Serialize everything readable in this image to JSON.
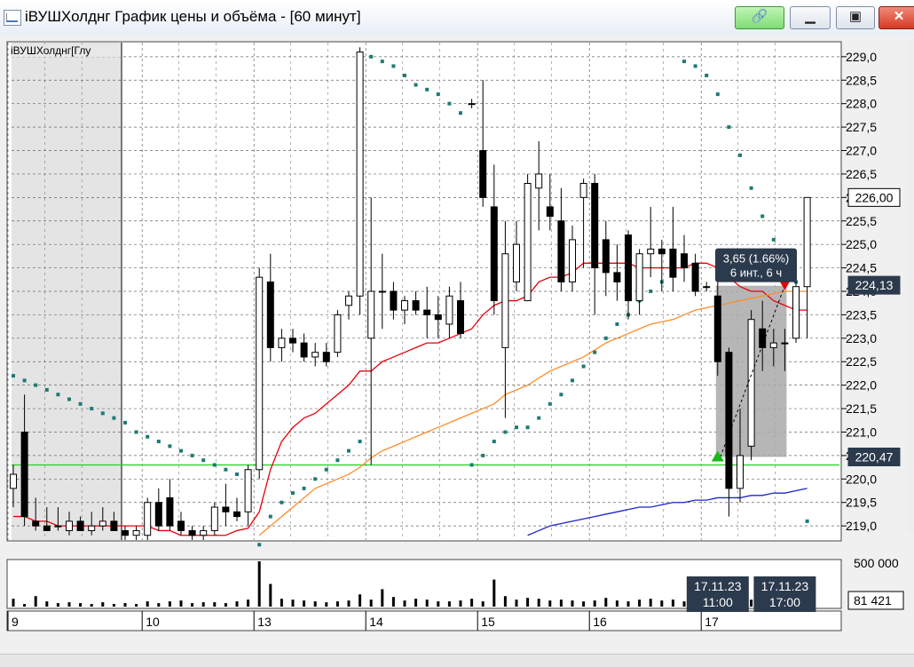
{
  "window": {
    "title": "iВУШХолднг График цены и объёма - [60 минут]",
    "ticker_label": "iВУШХолднг[Глу"
  },
  "colors": {
    "grid": "#666666",
    "candle": "#000000",
    "ma_fast": "#e8000b",
    "ma_mid": "#ff8c2a",
    "ma_slow": "#1e24c8",
    "sar": "#1f7a73",
    "level": "#20d020",
    "highlight": "#a9a9a9",
    "badge": "#2b3a4c",
    "signal_up": "#18b818",
    "signal_down": "#e30000"
  },
  "icons": [
    "chart-app-icon",
    "link-icon",
    "minimize-icon",
    "maximize-icon",
    "close-icon"
  ],
  "chart_data": {
    "type": "candlestick",
    "timeframe": "60 минут",
    "ylim": [
      218.7,
      229.3
    ],
    "y_ticks": [
      "229,0",
      "228,5",
      "228,0",
      "227,5",
      "227,0",
      "226,5",
      "226,0",
      "225,5",
      "225,0",
      "224,5",
      "224,0",
      "223,5",
      "223,0",
      "222,5",
      "222,0",
      "221,5",
      "221,0",
      "220,5",
      "220,0",
      "219,5",
      "219,0"
    ],
    "y_tick_values": [
      229.0,
      228.5,
      228.0,
      227.5,
      227.0,
      226.5,
      226.0,
      225.5,
      225.0,
      224.5,
      224.0,
      223.5,
      223.0,
      222.5,
      222.0,
      221.5,
      221.0,
      220.5,
      220.0,
      219.5,
      219.0
    ],
    "day_labels": [
      {
        "label": "9",
        "index": 0
      },
      {
        "label": "10",
        "index": 12
      },
      {
        "label": "13",
        "index": 22
      },
      {
        "label": "14",
        "index": 32
      },
      {
        "label": "15",
        "index": 42
      },
      {
        "label": "16",
        "index": 52
      },
      {
        "label": "17",
        "index": 62
      }
    ],
    "price_badges": [
      {
        "label": "226,00",
        "value": 226.0
      },
      {
        "label": "224,13",
        "value": 224.13
      },
      {
        "label": "220,47",
        "value": 220.47
      }
    ],
    "measurement": {
      "line1": "3,65 (1.66%)",
      "line2": "6 инт., 6 ч",
      "from_index": 63,
      "to_index": 69,
      "low": 220.47,
      "high": 224.12
    },
    "green_level": 220.3,
    "time_badges": [
      {
        "date": "17.11.23",
        "time": "11:00",
        "index": 63
      },
      {
        "date": "17.11.23",
        "time": "17:00",
        "index": 69
      }
    ],
    "volume_labels": [
      "500 000",
      "81 421"
    ],
    "volume_max": 520000,
    "candles": [
      {
        "o": 219.8,
        "h": 220.3,
        "l": 219.4,
        "c": 220.1
      },
      {
        "o": 221.0,
        "h": 221.8,
        "l": 219.0,
        "c": 219.2
      },
      {
        "o": 219.1,
        "h": 219.6,
        "l": 218.9,
        "c": 219.0
      },
      {
        "o": 219.0,
        "h": 219.4,
        "l": 218.9,
        "c": 218.9
      },
      {
        "o": 219.0,
        "h": 219.4,
        "l": 218.9,
        "c": 219.0
      },
      {
        "o": 218.9,
        "h": 219.3,
        "l": 218.8,
        "c": 219.1
      },
      {
        "o": 219.1,
        "h": 219.2,
        "l": 218.9,
        "c": 218.9
      },
      {
        "o": 218.9,
        "h": 219.3,
        "l": 218.8,
        "c": 219.0
      },
      {
        "o": 219.0,
        "h": 219.4,
        "l": 218.9,
        "c": 219.1
      },
      {
        "o": 219.1,
        "h": 219.3,
        "l": 218.9,
        "c": 218.9
      },
      {
        "o": 218.9,
        "h": 219.0,
        "l": 218.7,
        "c": 218.8
      },
      {
        "o": 218.8,
        "h": 219.0,
        "l": 218.7,
        "c": 218.9
      },
      {
        "o": 218.8,
        "h": 219.6,
        "l": 218.7,
        "c": 219.5
      },
      {
        "o": 219.5,
        "h": 219.8,
        "l": 218.9,
        "c": 219.0
      },
      {
        "o": 219.6,
        "h": 220.0,
        "l": 218.9,
        "c": 219.0
      },
      {
        "o": 219.1,
        "h": 219.3,
        "l": 218.8,
        "c": 218.9
      },
      {
        "o": 218.9,
        "h": 219.0,
        "l": 218.7,
        "c": 218.8
      },
      {
        "o": 218.8,
        "h": 219.0,
        "l": 218.7,
        "c": 218.9
      },
      {
        "o": 218.9,
        "h": 219.5,
        "l": 218.8,
        "c": 219.4
      },
      {
        "o": 219.4,
        "h": 219.9,
        "l": 219.0,
        "c": 219.3
      },
      {
        "o": 219.3,
        "h": 219.6,
        "l": 219.1,
        "c": 219.2
      },
      {
        "o": 219.3,
        "h": 220.3,
        "l": 219.0,
        "c": 220.2
      },
      {
        "o": 220.2,
        "h": 224.5,
        "l": 220.0,
        "c": 224.3
      },
      {
        "o": 224.2,
        "h": 224.8,
        "l": 222.5,
        "c": 222.8
      },
      {
        "o": 222.8,
        "h": 223.2,
        "l": 222.5,
        "c": 223.0
      },
      {
        "o": 223.0,
        "h": 223.2,
        "l": 222.7,
        "c": 222.9
      },
      {
        "o": 222.9,
        "h": 223.1,
        "l": 222.5,
        "c": 222.6
      },
      {
        "o": 222.6,
        "h": 222.9,
        "l": 222.4,
        "c": 222.7
      },
      {
        "o": 222.7,
        "h": 222.9,
        "l": 222.4,
        "c": 222.5
      },
      {
        "o": 222.7,
        "h": 223.6,
        "l": 222.6,
        "c": 223.5
      },
      {
        "o": 223.7,
        "h": 224.0,
        "l": 223.4,
        "c": 223.9
      },
      {
        "o": 223.9,
        "h": 229.2,
        "l": 223.5,
        "c": 229.1
      },
      {
        "o": 223.0,
        "h": 226.0,
        "l": 220.3,
        "c": 224.0
      },
      {
        "o": 224.0,
        "h": 224.8,
        "l": 223.2,
        "c": 224.0
      },
      {
        "o": 224.0,
        "h": 224.2,
        "l": 223.4,
        "c": 223.6
      },
      {
        "o": 223.6,
        "h": 223.9,
        "l": 223.3,
        "c": 223.8
      },
      {
        "o": 223.8,
        "h": 224.0,
        "l": 223.5,
        "c": 223.6
      },
      {
        "o": 223.6,
        "h": 224.1,
        "l": 223.0,
        "c": 223.5
      },
      {
        "o": 223.5,
        "h": 223.9,
        "l": 223.0,
        "c": 223.4
      },
      {
        "o": 223.3,
        "h": 224.1,
        "l": 223.0,
        "c": 223.9
      },
      {
        "o": 223.8,
        "h": 224.2,
        "l": 223.0,
        "c": 223.1
      },
      {
        "o": 228.0,
        "h": 228.1,
        "l": 227.9,
        "c": 228.0
      },
      {
        "o": 227.0,
        "h": 228.5,
        "l": 225.8,
        "c": 226.0
      },
      {
        "o": 225.8,
        "h": 226.7,
        "l": 223.5,
        "c": 223.8
      },
      {
        "o": 222.8,
        "h": 225.5,
        "l": 221.3,
        "c": 224.8
      },
      {
        "o": 224.2,
        "h": 225.5,
        "l": 224.0,
        "c": 225.0
      },
      {
        "o": 223.8,
        "h": 226.5,
        "l": 223.8,
        "c": 226.3
      },
      {
        "o": 226.2,
        "h": 227.2,
        "l": 225.3,
        "c": 226.5
      },
      {
        "o": 225.8,
        "h": 226.5,
        "l": 225.3,
        "c": 225.6
      },
      {
        "o": 225.5,
        "h": 226.2,
        "l": 224.0,
        "c": 224.2
      },
      {
        "o": 224.2,
        "h": 225.4,
        "l": 224.0,
        "c": 225.1
      },
      {
        "o": 226.0,
        "h": 226.4,
        "l": 224.5,
        "c": 226.3
      },
      {
        "o": 226.3,
        "h": 226.5,
        "l": 223.5,
        "c": 224.5
      },
      {
        "o": 225.1,
        "h": 225.5,
        "l": 223.9,
        "c": 224.4
      },
      {
        "o": 224.4,
        "h": 225.0,
        "l": 223.8,
        "c": 224.2
      },
      {
        "o": 225.2,
        "h": 225.3,
        "l": 223.4,
        "c": 223.8
      },
      {
        "o": 223.8,
        "h": 224.9,
        "l": 223.5,
        "c": 224.8
      },
      {
        "o": 224.8,
        "h": 225.8,
        "l": 224.3,
        "c": 224.9
      },
      {
        "o": 224.9,
        "h": 225.1,
        "l": 224.0,
        "c": 224.8
      },
      {
        "o": 224.9,
        "h": 225.8,
        "l": 224.0,
        "c": 224.3
      },
      {
        "o": 224.8,
        "h": 225.2,
        "l": 224.2,
        "c": 224.5
      },
      {
        "o": 224.6,
        "h": 224.8,
        "l": 223.9,
        "c": 224.0
      },
      {
        "o": 224.1,
        "h": 224.2,
        "l": 224.0,
        "c": 224.1
      },
      {
        "o": 223.9,
        "h": 224.2,
        "l": 222.2,
        "c": 222.5
      },
      {
        "o": 222.7,
        "h": 222.8,
        "l": 219.2,
        "c": 219.8
      },
      {
        "o": 219.8,
        "h": 221.5,
        "l": 219.5,
        "c": 220.5
      },
      {
        "o": 220.7,
        "h": 223.6,
        "l": 220.4,
        "c": 223.4
      },
      {
        "o": 223.2,
        "h": 223.8,
        "l": 222.3,
        "c": 222.8
      },
      {
        "o": 222.8,
        "h": 223.2,
        "l": 222.4,
        "c": 222.9
      },
      {
        "o": 222.9,
        "h": 223.2,
        "l": 222.3,
        "c": 222.9
      },
      {
        "o": 223.0,
        "h": 224.3,
        "l": 222.9,
        "c": 224.1
      },
      {
        "o": 224.1,
        "h": 226.0,
        "l": 223.0,
        "c": 226.0
      }
    ],
    "volumes": [
      90000,
      30000,
      120000,
      60000,
      40000,
      50000,
      40000,
      30000,
      50000,
      30000,
      40000,
      30000,
      60000,
      40000,
      60000,
      70000,
      40000,
      50000,
      50000,
      40000,
      60000,
      80000,
      520000,
      260000,
      90000,
      80000,
      70000,
      60000,
      50000,
      60000,
      70000,
      140000,
      80000,
      200000,
      110000,
      70000,
      90000,
      80000,
      60000,
      60000,
      70000,
      90000,
      60000,
      310000,
      120000,
      80000,
      100000,
      90000,
      70000,
      80000,
      70000,
      60000,
      70000,
      100000,
      70000,
      60000,
      80000,
      90000,
      70000,
      80000,
      60000,
      60000,
      40000,
      60000,
      170000,
      90000,
      80000,
      120000,
      70000,
      60000,
      90000,
      81421
    ],
    "ma_fast": [
      219.2,
      219.2,
      219.1,
      219.1,
      219.0,
      219.0,
      219.0,
      219.0,
      219.0,
      219.0,
      219.0,
      219.0,
      219.0,
      218.9,
      218.9,
      218.8,
      218.8,
      218.8,
      218.8,
      218.8,
      218.9,
      218.95,
      219.3,
      220.2,
      220.8,
      221.1,
      221.3,
      221.4,
      221.6,
      221.8,
      222.0,
      222.3,
      222.3,
      222.5,
      222.6,
      222.7,
      222.8,
      222.9,
      222.9,
      223.0,
      223.1,
      223.2,
      223.5,
      223.7,
      223.8,
      223.8,
      223.9,
      224.2,
      224.3,
      224.3,
      224.4,
      224.6,
      224.6,
      224.6,
      224.6,
      224.6,
      224.5,
      224.5,
      224.5,
      224.5,
      224.5,
      224.6,
      224.6,
      224.5,
      224.3,
      224.1,
      224.0,
      224.0,
      223.8,
      223.7,
      223.6,
      223.6
    ],
    "ma_mid": [
      null,
      null,
      null,
      null,
      null,
      null,
      null,
      null,
      null,
      null,
      null,
      null,
      null,
      null,
      null,
      null,
      null,
      null,
      null,
      null,
      null,
      null,
      218.8,
      219.0,
      219.2,
      219.4,
      219.6,
      219.8,
      219.9,
      220.0,
      220.1,
      220.25,
      220.45,
      220.6,
      220.7,
      220.8,
      220.9,
      221.0,
      221.1,
      221.2,
      221.3,
      221.4,
      221.5,
      221.6,
      221.8,
      221.9,
      222.0,
      222.15,
      222.3,
      222.4,
      222.5,
      222.6,
      222.75,
      222.9,
      223.0,
      223.1,
      223.2,
      223.3,
      223.35,
      223.4,
      223.5,
      223.6,
      223.65,
      223.7,
      223.75,
      223.8,
      223.85,
      223.9,
      223.95,
      224.0,
      224.0,
      224.0
    ],
    "ma_slow": [
      null,
      null,
      null,
      null,
      null,
      null,
      null,
      null,
      null,
      null,
      null,
      null,
      null,
      null,
      null,
      null,
      null,
      null,
      null,
      null,
      null,
      null,
      null,
      null,
      null,
      null,
      null,
      null,
      null,
      null,
      null,
      null,
      null,
      null,
      null,
      null,
      null,
      null,
      null,
      null,
      null,
      null,
      null,
      null,
      null,
      null,
      218.8,
      218.9,
      219.0,
      219.05,
      219.1,
      219.15,
      219.2,
      219.25,
      219.3,
      219.35,
      219.4,
      219.4,
      219.45,
      219.5,
      219.5,
      219.55,
      219.55,
      219.6,
      219.6,
      219.6,
      219.65,
      219.65,
      219.7,
      219.7,
      219.75,
      219.8
    ],
    "sar": [
      222.2,
      222.1,
      222.0,
      221.9,
      221.8,
      221.7,
      221.6,
      221.5,
      221.4,
      221.3,
      221.2,
      221.0,
      220.9,
      220.8,
      220.7,
      220.6,
      220.5,
      220.4,
      220.3,
      220.2,
      220.1,
      219.9,
      218.6,
      219.2,
      219.5,
      219.7,
      219.8,
      220.0,
      220.2,
      220.4,
      220.6,
      220.8,
      229.0,
      228.9,
      228.8,
      228.6,
      228.4,
      228.3,
      228.2,
      228.0,
      227.8,
      220.3,
      220.5,
      220.8,
      221.0,
      221.1,
      221.1,
      221.3,
      221.6,
      221.8,
      222.1,
      222.4,
      222.7,
      223.0,
      223.3,
      223.5,
      223.8,
      224.0,
      224.2,
      224.5,
      228.9,
      228.8,
      228.6,
      228.2,
      227.5,
      226.9,
      226.2,
      225.6,
      225.1,
      224.6,
      224.2,
      219.1
    ]
  }
}
